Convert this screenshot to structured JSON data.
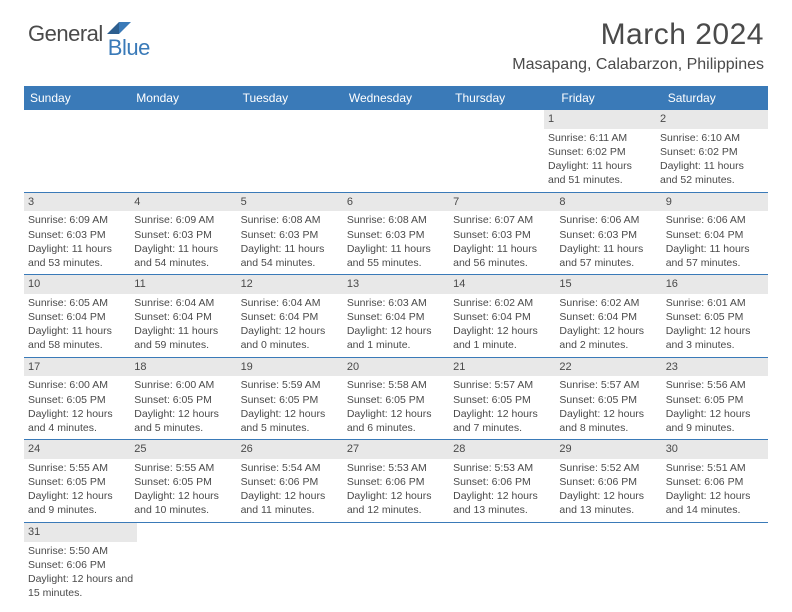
{
  "brand": {
    "part1": "General",
    "part2": "Blue"
  },
  "title": "March 2024",
  "location": "Masapang, Calabarzon, Philippines",
  "colors": {
    "header_bg": "#3a7ab8",
    "daynum_bg": "#e8e8e8",
    "text": "#4a4a4a",
    "row_border": "#3a7ab8"
  },
  "weekdays": [
    "Sunday",
    "Monday",
    "Tuesday",
    "Wednesday",
    "Thursday",
    "Friday",
    "Saturday"
  ],
  "weeks": [
    [
      null,
      null,
      null,
      null,
      null,
      {
        "n": "1",
        "sunrise": "Sunrise: 6:11 AM",
        "sunset": "Sunset: 6:02 PM",
        "daylight": "Daylight: 11 hours and 51 minutes."
      },
      {
        "n": "2",
        "sunrise": "Sunrise: 6:10 AM",
        "sunset": "Sunset: 6:02 PM",
        "daylight": "Daylight: 11 hours and 52 minutes."
      }
    ],
    [
      {
        "n": "3",
        "sunrise": "Sunrise: 6:09 AM",
        "sunset": "Sunset: 6:03 PM",
        "daylight": "Daylight: 11 hours and 53 minutes."
      },
      {
        "n": "4",
        "sunrise": "Sunrise: 6:09 AM",
        "sunset": "Sunset: 6:03 PM",
        "daylight": "Daylight: 11 hours and 54 minutes."
      },
      {
        "n": "5",
        "sunrise": "Sunrise: 6:08 AM",
        "sunset": "Sunset: 6:03 PM",
        "daylight": "Daylight: 11 hours and 54 minutes."
      },
      {
        "n": "6",
        "sunrise": "Sunrise: 6:08 AM",
        "sunset": "Sunset: 6:03 PM",
        "daylight": "Daylight: 11 hours and 55 minutes."
      },
      {
        "n": "7",
        "sunrise": "Sunrise: 6:07 AM",
        "sunset": "Sunset: 6:03 PM",
        "daylight": "Daylight: 11 hours and 56 minutes."
      },
      {
        "n": "8",
        "sunrise": "Sunrise: 6:06 AM",
        "sunset": "Sunset: 6:03 PM",
        "daylight": "Daylight: 11 hours and 57 minutes."
      },
      {
        "n": "9",
        "sunrise": "Sunrise: 6:06 AM",
        "sunset": "Sunset: 6:04 PM",
        "daylight": "Daylight: 11 hours and 57 minutes."
      }
    ],
    [
      {
        "n": "10",
        "sunrise": "Sunrise: 6:05 AM",
        "sunset": "Sunset: 6:04 PM",
        "daylight": "Daylight: 11 hours and 58 minutes."
      },
      {
        "n": "11",
        "sunrise": "Sunrise: 6:04 AM",
        "sunset": "Sunset: 6:04 PM",
        "daylight": "Daylight: 11 hours and 59 minutes."
      },
      {
        "n": "12",
        "sunrise": "Sunrise: 6:04 AM",
        "sunset": "Sunset: 6:04 PM",
        "daylight": "Daylight: 12 hours and 0 minutes."
      },
      {
        "n": "13",
        "sunrise": "Sunrise: 6:03 AM",
        "sunset": "Sunset: 6:04 PM",
        "daylight": "Daylight: 12 hours and 1 minute."
      },
      {
        "n": "14",
        "sunrise": "Sunrise: 6:02 AM",
        "sunset": "Sunset: 6:04 PM",
        "daylight": "Daylight: 12 hours and 1 minute."
      },
      {
        "n": "15",
        "sunrise": "Sunrise: 6:02 AM",
        "sunset": "Sunset: 6:04 PM",
        "daylight": "Daylight: 12 hours and 2 minutes."
      },
      {
        "n": "16",
        "sunrise": "Sunrise: 6:01 AM",
        "sunset": "Sunset: 6:05 PM",
        "daylight": "Daylight: 12 hours and 3 minutes."
      }
    ],
    [
      {
        "n": "17",
        "sunrise": "Sunrise: 6:00 AM",
        "sunset": "Sunset: 6:05 PM",
        "daylight": "Daylight: 12 hours and 4 minutes."
      },
      {
        "n": "18",
        "sunrise": "Sunrise: 6:00 AM",
        "sunset": "Sunset: 6:05 PM",
        "daylight": "Daylight: 12 hours and 5 minutes."
      },
      {
        "n": "19",
        "sunrise": "Sunrise: 5:59 AM",
        "sunset": "Sunset: 6:05 PM",
        "daylight": "Daylight: 12 hours and 5 minutes."
      },
      {
        "n": "20",
        "sunrise": "Sunrise: 5:58 AM",
        "sunset": "Sunset: 6:05 PM",
        "daylight": "Daylight: 12 hours and 6 minutes."
      },
      {
        "n": "21",
        "sunrise": "Sunrise: 5:57 AM",
        "sunset": "Sunset: 6:05 PM",
        "daylight": "Daylight: 12 hours and 7 minutes."
      },
      {
        "n": "22",
        "sunrise": "Sunrise: 5:57 AM",
        "sunset": "Sunset: 6:05 PM",
        "daylight": "Daylight: 12 hours and 8 minutes."
      },
      {
        "n": "23",
        "sunrise": "Sunrise: 5:56 AM",
        "sunset": "Sunset: 6:05 PM",
        "daylight": "Daylight: 12 hours and 9 minutes."
      }
    ],
    [
      {
        "n": "24",
        "sunrise": "Sunrise: 5:55 AM",
        "sunset": "Sunset: 6:05 PM",
        "daylight": "Daylight: 12 hours and 9 minutes."
      },
      {
        "n": "25",
        "sunrise": "Sunrise: 5:55 AM",
        "sunset": "Sunset: 6:05 PM",
        "daylight": "Daylight: 12 hours and 10 minutes."
      },
      {
        "n": "26",
        "sunrise": "Sunrise: 5:54 AM",
        "sunset": "Sunset: 6:06 PM",
        "daylight": "Daylight: 12 hours and 11 minutes."
      },
      {
        "n": "27",
        "sunrise": "Sunrise: 5:53 AM",
        "sunset": "Sunset: 6:06 PM",
        "daylight": "Daylight: 12 hours and 12 minutes."
      },
      {
        "n": "28",
        "sunrise": "Sunrise: 5:53 AM",
        "sunset": "Sunset: 6:06 PM",
        "daylight": "Daylight: 12 hours and 13 minutes."
      },
      {
        "n": "29",
        "sunrise": "Sunrise: 5:52 AM",
        "sunset": "Sunset: 6:06 PM",
        "daylight": "Daylight: 12 hours and 13 minutes."
      },
      {
        "n": "30",
        "sunrise": "Sunrise: 5:51 AM",
        "sunset": "Sunset: 6:06 PM",
        "daylight": "Daylight: 12 hours and 14 minutes."
      }
    ],
    [
      {
        "n": "31",
        "sunrise": "Sunrise: 5:50 AM",
        "sunset": "Sunset: 6:06 PM",
        "daylight": "Daylight: 12 hours and 15 minutes."
      },
      null,
      null,
      null,
      null,
      null,
      null
    ]
  ]
}
